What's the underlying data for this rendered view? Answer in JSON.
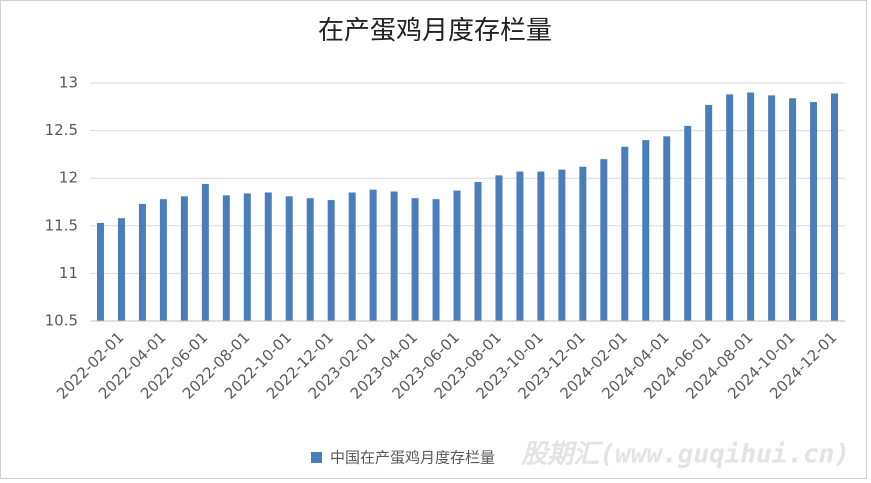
{
  "chart_data": {
    "type": "bar",
    "title": "在产蛋鸡月度存栏量",
    "categories": [
      null,
      "2022-02-01",
      null,
      "2022-04-01",
      null,
      "2022-06-01",
      null,
      "2022-08-01",
      null,
      "2022-10-01",
      null,
      "2022-12-01",
      null,
      "2023-02-01",
      null,
      "2023-04-01",
      null,
      "2023-06-01",
      null,
      "2023-08-01",
      null,
      "2023-10-01",
      null,
      "2023-12-01",
      null,
      "2024-02-01",
      null,
      "2024-04-01",
      null,
      "2024-06-01",
      null,
      "2024-08-01",
      null,
      "2024-10-01",
      null,
      "2024-12-01"
    ],
    "series": [
      {
        "name": "中国在产蛋鸡月度存栏量",
        "color": "#4a7ebb",
        "values": [
          11.53,
          11.58,
          11.73,
          11.78,
          11.81,
          11.94,
          11.82,
          11.84,
          11.85,
          11.81,
          11.79,
          11.77,
          11.85,
          11.88,
          11.86,
          11.79,
          11.78,
          11.87,
          11.96,
          12.03,
          12.07,
          12.07,
          12.09,
          12.12,
          12.2,
          12.33,
          12.4,
          12.44,
          12.55,
          12.77,
          12.88,
          12.9,
          12.87,
          12.84,
          12.8,
          12.89
        ]
      }
    ],
    "ylim": [
      10.5,
      13
    ],
    "yticks": [
      10.5,
      11,
      11.5,
      12,
      12.5,
      13
    ],
    "grid": true,
    "legend": "bottom",
    "watermark": "股期汇(www.guqihui.cn)"
  }
}
